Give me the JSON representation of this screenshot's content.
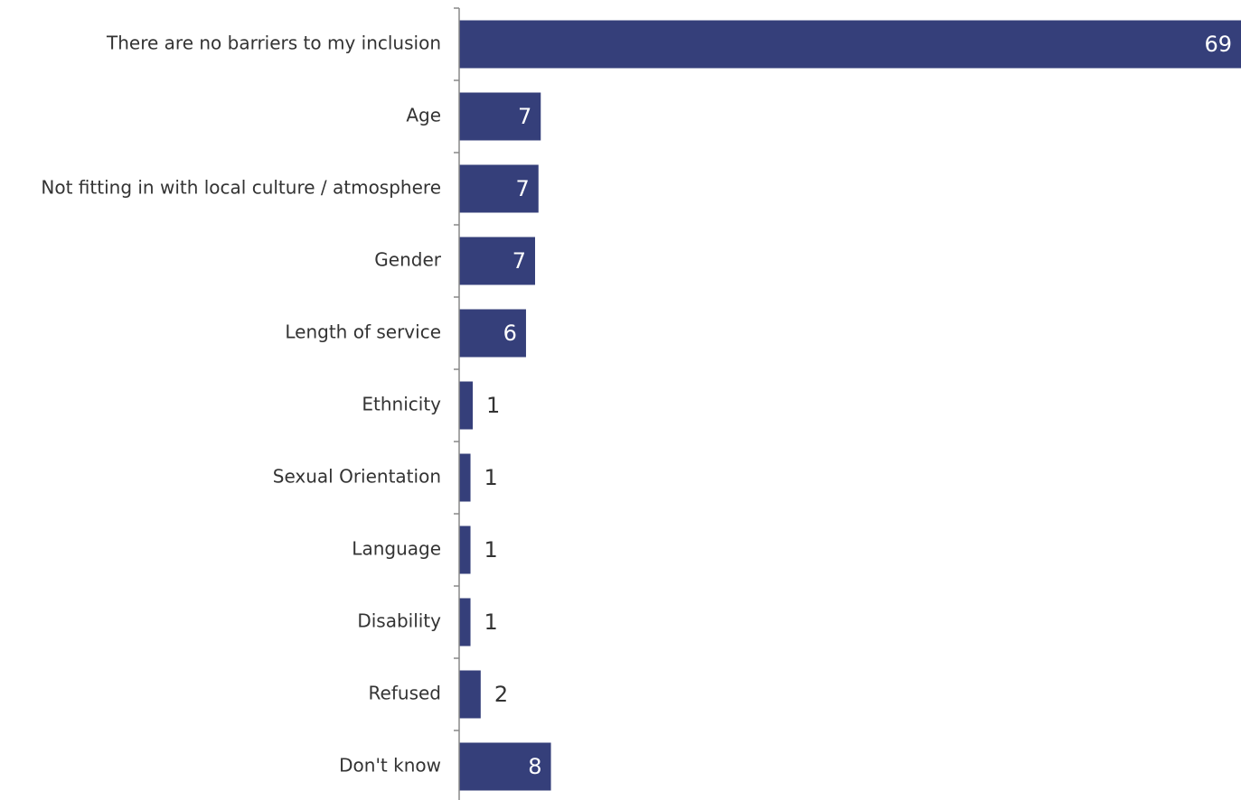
{
  "chart_data": {
    "type": "bar",
    "orientation": "horizontal",
    "categories": [
      "There are no barriers to my inclusion",
      "Age",
      "Not fitting in with local culture / atmosphere",
      "Gender",
      "Length of service",
      "Ethnicity",
      "Sexual Orientation",
      "Language",
      "Disability",
      "Refused",
      "Don't know"
    ],
    "values": [
      69,
      7.2,
      7,
      6.7,
      5.9,
      1.2,
      1,
      1,
      1,
      1.9,
      8.1
    ],
    "data_labels": [
      "69",
      "7",
      "7",
      "7",
      "6",
      "1",
      "1",
      "1",
      "1",
      "2",
      "8"
    ],
    "title": "",
    "xlabel": "",
    "ylabel": "",
    "xlim": [
      0,
      69
    ],
    "grid": false,
    "legend": "none",
    "colors": {
      "bar": "#353f7a",
      "label_inside": "#ffffff",
      "label_outside": "#333333",
      "axis": "#888888",
      "category_text": "#333333"
    }
  }
}
